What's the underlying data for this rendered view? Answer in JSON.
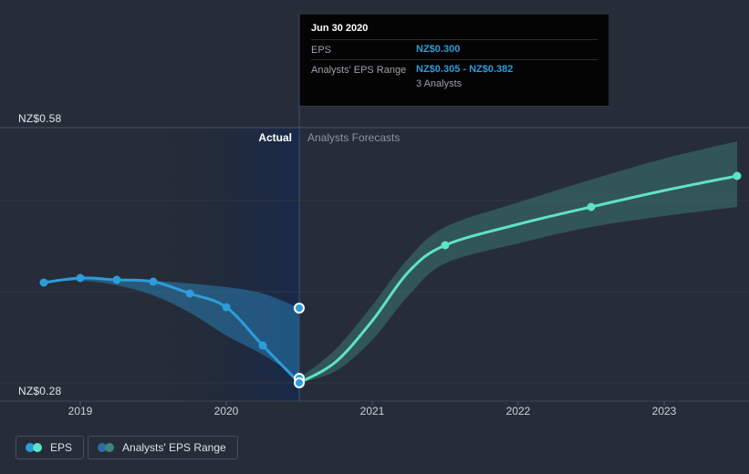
{
  "background": "#262d39",
  "tooltip": {
    "title": "Jun 30 2020",
    "rows": [
      {
        "label": "EPS",
        "value": "NZ$0.300"
      },
      {
        "label": "Analysts' EPS Range",
        "value": "NZ$0.305 - NZ$0.382",
        "sub": "3 Analysts"
      }
    ],
    "value_color": "#2d9cdb"
  },
  "chart_data": {
    "type": "line",
    "title": "EPS actual and analysts forecast over time",
    "y_axis": {
      "min": 0.28,
      "max": 0.58,
      "min_label": "NZ$0.28",
      "max_label": "NZ$0.58",
      "unit": "NZ$",
      "gridline_values": [
        0.5,
        0.4,
        0.3
      ]
    },
    "x_axis": {
      "tick_years": [
        2019,
        2020,
        2021,
        2022,
        2023
      ]
    },
    "regions": {
      "actual_label": "Actual",
      "forecast_label": "Analysts Forecasts",
      "highlight_from": 2019.5,
      "divider_at": 2020.5
    },
    "series": [
      {
        "name": "EPS",
        "color": "#2d9cdb",
        "width": 3,
        "markers": "all",
        "points": [
          [
            2018.75,
            0.41
          ],
          [
            2019.0,
            0.415
          ],
          [
            2019.25,
            0.413
          ],
          [
            2019.5,
            0.411
          ],
          [
            2019.75,
            0.398
          ],
          [
            2020.0,
            0.383
          ],
          [
            2020.25,
            0.341
          ],
          [
            2020.5,
            0.3
          ]
        ]
      },
      {
        "name": "EPS Forecast",
        "color": "#5fe3c5",
        "width": 3,
        "marker_x": [
          2021.5,
          2022.5,
          2023.5
        ],
        "points": [
          [
            2020.5,
            0.3
          ],
          [
            2020.75,
            0.323
          ],
          [
            2021.0,
            0.368
          ],
          [
            2021.25,
            0.422
          ],
          [
            2021.5,
            0.451
          ],
          [
            2022.0,
            0.474
          ],
          [
            2022.5,
            0.493
          ],
          [
            2023.0,
            0.511
          ],
          [
            2023.5,
            0.527
          ]
        ]
      }
    ],
    "bands": [
      {
        "name": "Analysts' EPS Range (past)",
        "color": "rgba(45,156,219,0.40)",
        "upper": [
          [
            2018.75,
            0.41
          ],
          [
            2019.0,
            0.416
          ],
          [
            2019.25,
            0.414
          ],
          [
            2019.5,
            0.412
          ],
          [
            2019.75,
            0.409
          ],
          [
            2020.0,
            0.405
          ],
          [
            2020.25,
            0.398
          ],
          [
            2020.5,
            0.382
          ]
        ],
        "lower": [
          [
            2018.75,
            0.41
          ],
          [
            2019.0,
            0.412
          ],
          [
            2019.25,
            0.407
          ],
          [
            2019.5,
            0.396
          ],
          [
            2019.75,
            0.377
          ],
          [
            2020.0,
            0.352
          ],
          [
            2020.25,
            0.331
          ],
          [
            2020.5,
            0.305
          ]
        ]
      },
      {
        "name": "Analysts' EPS Range (forecast)",
        "color": "rgba(95,227,197,0.22)",
        "upper": [
          [
            2020.5,
            0.305
          ],
          [
            2020.75,
            0.337
          ],
          [
            2021.0,
            0.385
          ],
          [
            2021.25,
            0.437
          ],
          [
            2021.5,
            0.471
          ],
          [
            2022.0,
            0.498
          ],
          [
            2022.5,
            0.523
          ],
          [
            2023.0,
            0.546
          ],
          [
            2023.5,
            0.565
          ]
        ],
        "lower": [
          [
            2020.5,
            0.3
          ],
          [
            2020.75,
            0.313
          ],
          [
            2021.0,
            0.347
          ],
          [
            2021.25,
            0.396
          ],
          [
            2021.5,
            0.431
          ],
          [
            2022.0,
            0.453
          ],
          [
            2022.5,
            0.471
          ],
          [
            2023.0,
            0.483
          ],
          [
            2023.5,
            0.493
          ]
        ]
      }
    ],
    "highlighted_points": {
      "x": 2020.5,
      "values": [
        0.382,
        0.305,
        0.3
      ],
      "fill": "#2d9cdb",
      "ring": "#ffffff"
    },
    "colors": {
      "gridline": "#2e3643",
      "gridline_labeled": "#4a5260",
      "axis_line": "#3c4554",
      "tick": "#4a535f",
      "divider": "#35517c",
      "highlight_gradient": [
        "rgba(34,40,53,0)",
        "#18294a"
      ]
    }
  },
  "legend": [
    {
      "label": "EPS",
      "dot_colors": [
        "#2d9cdb",
        "#5fe3c5"
      ]
    },
    {
      "label": "Analysts' EPS Range",
      "dot_colors": [
        "#2e6da4",
        "#41847f"
      ]
    }
  ]
}
